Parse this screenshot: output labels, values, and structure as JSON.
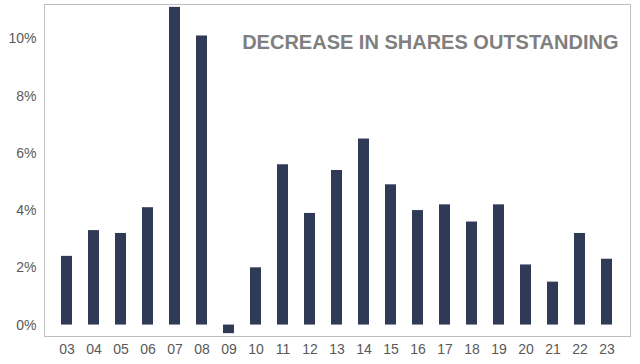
{
  "chart_data": {
    "type": "bar",
    "title": "DECREASE IN SHARES OUTSTANDING",
    "categories": [
      "03",
      "04",
      "05",
      "06",
      "07",
      "08",
      "09",
      "10",
      "11",
      "12",
      "13",
      "14",
      "15",
      "16",
      "17",
      "18",
      "19",
      "20",
      "21",
      "22",
      "23"
    ],
    "values": [
      2.4,
      3.3,
      3.2,
      4.1,
      11.1,
      10.1,
      -0.3,
      2.0,
      5.6,
      3.9,
      5.4,
      6.5,
      4.9,
      4.0,
      4.2,
      3.6,
      4.2,
      2.1,
      1.5,
      3.2,
      2.3
    ],
    "color": "#2f3b56",
    "ylim": [
      -0.4,
      11.2
    ],
    "yticks": [
      {
        "value": 0,
        "label": "0%"
      },
      {
        "value": 2,
        "label": "2%"
      },
      {
        "value": 4,
        "label": "4%"
      },
      {
        "value": 6,
        "label": "6%"
      },
      {
        "value": 8,
        "label": "8%"
      },
      {
        "value": 10,
        "label": "10%"
      }
    ],
    "grid": false
  }
}
